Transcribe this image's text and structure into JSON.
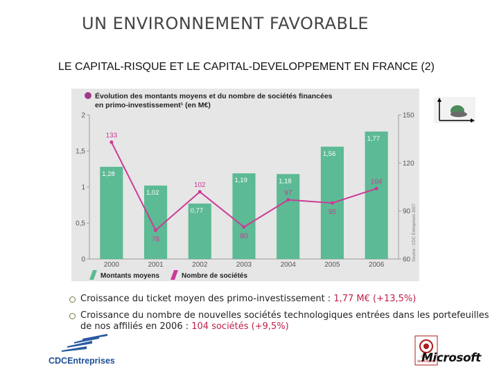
{
  "slide": {
    "title": "UN ENVIRONNEMENT FAVORABLE",
    "subtitle": "LE CAPITAL-RISQUE ET LE CAPITAL-DEVELOPPEMENT EN FRANCE (2)"
  },
  "chart_data": {
    "type": "bar",
    "title_line1": "Évolution des montants moyens et du nombre de sociétés financées",
    "title_line2": "en primo-investissement¹ (en M€)",
    "categories": [
      "2000",
      "2001",
      "2002",
      "2003",
      "2004",
      "2005",
      "2006"
    ],
    "series": [
      {
        "name": "Montants moyens",
        "type": "bar",
        "axis": "left",
        "values": [
          1.28,
          1.02,
          0.77,
          1.19,
          1.18,
          1.56,
          1.77
        ],
        "labels": [
          "1,28",
          "1,02",
          "0,77",
          "1,19",
          "1,18",
          "1,56",
          "1,77"
        ],
        "color": "#5cba94"
      },
      {
        "name": "Nombre de sociétés",
        "type": "line",
        "axis": "right",
        "values": [
          133,
          78,
          102,
          80,
          97,
          95,
          104
        ],
        "labels": [
          "133",
          "78",
          "102",
          "80",
          "97",
          "95",
          "104"
        ],
        "color": "#cc3a96"
      }
    ],
    "left_axis": {
      "ylim": [
        0,
        2
      ],
      "ticks": [
        "0",
        "0,5",
        "1",
        "1,5",
        "2"
      ]
    },
    "right_axis": {
      "ylim": [
        60,
        150
      ],
      "ticks": [
        "60",
        "90",
        "120",
        "150"
      ]
    },
    "source": "Source : CDC Entreprises 2007",
    "grid": false,
    "legend": "bottom"
  },
  "bullets": [
    {
      "text": "Croissance du ticket moyen des primo-investissement : ",
      "highlight": "1,77 M€ (+13,5%)"
    },
    {
      "text": "Croissance du nombre de nouvelles sociétés technologiques entrées dans les portefeuilles de nos affiliés en 2006 : ",
      "highlight": "104 sociétés (+9,5%)"
    }
  ],
  "logos": {
    "cdc": "CDCEntreprises",
    "caisse_line1": "Caisse",
    "caisse_line2": "des Dépôts",
    "microsoft": "Microsoft"
  },
  "colors": {
    "bar": "#5cba94",
    "line": "#cc3a96",
    "highlight": "#c0204a",
    "chart_bg": "#e6e6e6"
  }
}
